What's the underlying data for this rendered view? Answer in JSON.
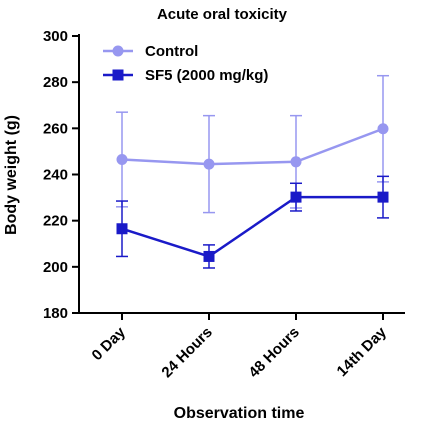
{
  "chart_data": {
    "type": "line",
    "title": "Acute oral toxicity",
    "xlabel": "Observation time",
    "ylabel": "Body weight (g)",
    "categories": [
      "0 Day",
      "24 Hours",
      "48 Hours",
      "14th Day"
    ],
    "ylim": [
      180,
      300
    ],
    "yticks": [
      180,
      200,
      220,
      240,
      260,
      280,
      300
    ],
    "grid": false,
    "legend_position": "top-left",
    "series": [
      {
        "name": "Control",
        "marker": "circle",
        "color": "#9797f0",
        "values": [
          246.5,
          244.5,
          245.5,
          259.8
        ],
        "error": [
          20.5,
          21,
          20,
          23
        ]
      },
      {
        "name": "SF5 (2000 mg/kg)",
        "marker": "square",
        "color": "#1a1ac8",
        "values": [
          216.5,
          204.5,
          230.2,
          230.2
        ],
        "error": [
          12,
          5,
          6,
          9
        ]
      }
    ]
  }
}
